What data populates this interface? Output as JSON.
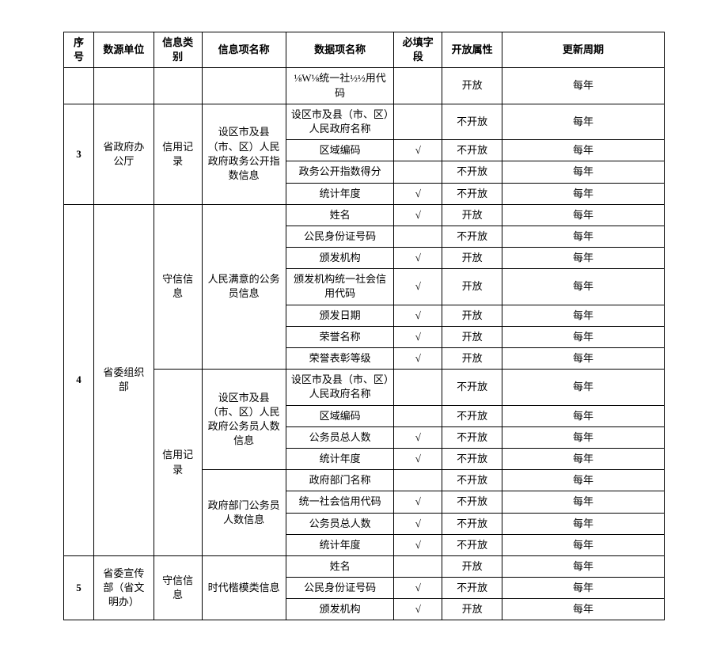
{
  "columns": [
    "序号",
    "数源单位",
    "信息类别",
    "信息项名称",
    "数据项名称",
    "必填字段",
    "开放属性",
    "更新周期"
  ],
  "check": "√",
  "open": "开放",
  "closed": "不开放",
  "cycle": "每年",
  "seq3": "3",
  "seq4": "4",
  "seq5": "5",
  "src3": "省政府办公厅",
  "src4": "省委组织部",
  "src5": "省委宣传部（省文明办）",
  "cat_credit_record": "信用记录",
  "cat_trust_info": "守信信息",
  "item3": "设区市及县（市、区）人民政府政务公开指数信息",
  "item4a": "人民满意的公务员信息",
  "item4b": "设区市及县（市、区）人民政府公务员人数信息",
  "item4c": "政府部门公务员人数信息",
  "item5": "时代楷模类信息",
  "r0": "⅛W⅛统一社½½用代码",
  "r1": "设区市及县（市、区）人民政府名称",
  "r2": "区域编码",
  "r3": "政务公开指数得分",
  "r4": "统计年度",
  "r5": "姓名",
  "r6": "公民身份证号码",
  "r7": "颁发机构",
  "r8": "颁发机构统一社会信用代码",
  "r9": "颁发日期",
  "r10": "荣誉名称",
  "r11": "荣誉表彰等级",
  "r12": "设区市及县（市、区）人民政府名称",
  "r13": "区域编码",
  "r14": "公务员总人数",
  "r15": "统计年度",
  "r16": "政府部门名称",
  "r17": "统一社会信用代码",
  "r18": "公务员总人数",
  "r19": "统计年度",
  "r20": "姓名",
  "r21": "公民身份证号码",
  "r22": "颁发机构"
}
